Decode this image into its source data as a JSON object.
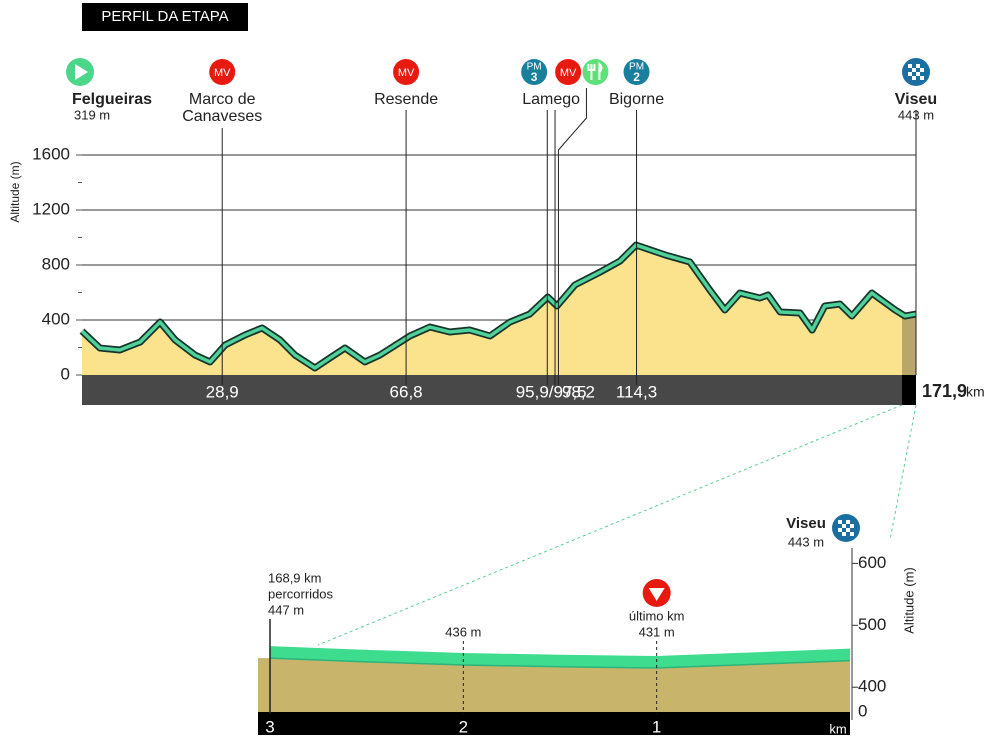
{
  "title": "PERFIL DA ETAPA",
  "chart_data": [
    {
      "type": "area",
      "y_label": "Altitude (m)",
      "color": "#fbe38e",
      "line_color": "#4fd19a",
      "x": [
        0,
        3.7,
        7.8,
        12,
        16.1,
        19.2,
        23.3,
        26.4,
        29.5,
        33.6,
        37.1,
        40.8,
        43.9,
        48,
        51.1,
        54.2,
        58.3,
        61.4,
        67.6,
        71.7,
        75.8,
        79.9,
        84.1,
        88.2,
        92.3,
        96,
        97.9,
        101.6,
        106.8,
        110.9,
        114.2,
        120.2,
        125.3,
        129.4,
        132.5,
        135.6,
        139.7,
        141.4,
        143.9,
        148,
        150.5,
        153.1,
        156.2,
        158.7,
        162.8,
        167.6,
        169.6,
        171.9
      ],
      "values": [
        319,
        196,
        182,
        240,
        385,
        255,
        145,
        95,
        218,
        291,
        342,
        255,
        145,
        51,
        124,
        196,
        95,
        145,
        284,
        349,
        313,
        327,
        284,
        385,
        444,
        567,
        502,
        655,
        749,
        829,
        945,
        873,
        822,
        618,
        473,
        596,
        560,
        582,
        458,
        451,
        327,
        502,
        516,
        429,
        596,
        473,
        429,
        443
      ],
      "xlim": [
        0,
        171.9
      ],
      "ylim": [
        0,
        1800
      ],
      "yticks": [
        0,
        400,
        800,
        1200,
        1600
      ],
      "grid": true,
      "distance": {
        "value": 171.9,
        "label": "171,9"
      },
      "distance_unit": "km",
      "waypoints": [
        {
          "name": [
            "Felgueiras"
          ],
          "bold": true,
          "km": [
            0
          ],
          "altitude": {
            "value": 319,
            "label": "319 m"
          },
          "marks": [
            {
              "shape": "start",
              "color": "#4cd68a"
            }
          ]
        },
        {
          "name": [
            "Marco de",
            "Canaveses"
          ],
          "km": [
            28.9
          ],
          "km_label": "28,9",
          "marks": [
            {
              "text": "MV",
              "color": "#e8190f"
            }
          ]
        },
        {
          "name": [
            "Resende"
          ],
          "km": [
            66.8
          ],
          "km_label": "66,8",
          "marks": [
            {
              "text": "MV",
              "color": "#e8190f"
            }
          ]
        },
        {
          "name": [
            "Lamego"
          ],
          "km": [
            95.9,
            97.5
          ],
          "km_label": "95,9/97,5",
          "marks": [
            {
              "text": "PM",
              "number": 3,
              "color": "#1a7f9c"
            },
            {
              "text": "MV",
              "color": "#e8190f"
            }
          ]
        },
        {
          "km": [
            98.2
          ],
          "km_label": "98,2",
          "marks": [
            {
              "shape": "food",
              "color": "#5ee07a"
            }
          ]
        },
        {
          "name": [
            "Bigorne"
          ],
          "km": [
            114.3
          ],
          "km_label": "114,3",
          "marks": [
            {
              "text": "PM",
              "number": 2,
              "color": "#1a7f9c"
            }
          ]
        },
        {
          "name": [
            "Viseu"
          ],
          "bold": true,
          "km": [
            171.9
          ],
          "altitude": {
            "value": 443,
            "label": "443 m"
          },
          "marks": [
            {
              "shape": "finish",
              "color": "#1a6fa0"
            }
          ]
        }
      ]
    },
    {
      "type": "area",
      "y_label": "Altitude (m)",
      "color": "#c8b46a",
      "line_color": "#3ddc8f",
      "x": [
        3,
        2.5,
        2,
        1.5,
        1,
        0.5,
        0
      ],
      "values": [
        447,
        441,
        436,
        433,
        431,
        437,
        443
      ],
      "xlim": [
        3,
        0
      ],
      "ylim": [
        360,
        620
      ],
      "yticks": [
        400,
        500,
        600
      ],
      "axis_break_label": 0,
      "xticks": [
        3,
        2,
        1
      ],
      "x_unit": "km",
      "labels": [
        {
          "x": 3,
          "lines": [
            {
              "value": 168.9,
              "label": "168,9 km"
            },
            "percorridos",
            {
              "value": 447,
              "label": "447 m"
            }
          ]
        },
        {
          "x": 2,
          "lines": [
            {
              "value": 436,
              "label": "436 m"
            }
          ]
        },
        {
          "x": 1,
          "lines": [
            "último km",
            {
              "value": 431,
              "label": "431 m"
            }
          ],
          "marker_color": "#e8190f"
        }
      ],
      "finish": {
        "name": "Viseu",
        "altitude": {
          "value": 443,
          "label": "443 m"
        }
      }
    }
  ]
}
